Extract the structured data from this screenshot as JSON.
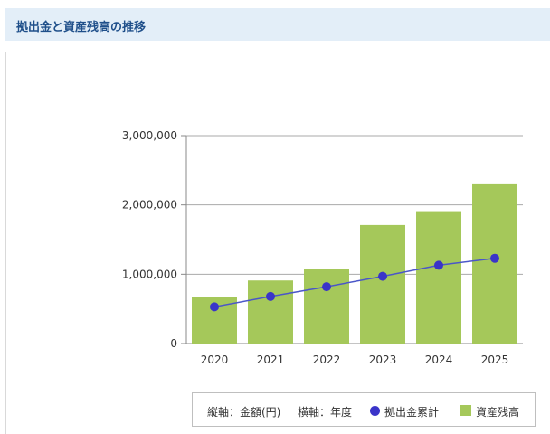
{
  "header": {
    "title": "拠出金と資産残高の推移"
  },
  "legend": {
    "vertical_axis_label": "縦軸：金額(円)",
    "horizontal_axis_label": "横軸：年度",
    "line_series_label": "拠出金累計",
    "bar_series_label": "資産残高"
  },
  "colors": {
    "bar": "#a5c85a",
    "line": "#4a56c8",
    "point": "#3a34c9",
    "axis": "#888888",
    "grid": "#aaaaaa"
  },
  "chart_data": {
    "type": "bar",
    "categories": [
      "2020",
      "2021",
      "2022",
      "2023",
      "2024",
      "2025"
    ],
    "series": [
      {
        "name": "資産残高",
        "type": "bar",
        "values": [
          670000,
          910000,
          1080000,
          1710000,
          1910000,
          2310000
        ]
      },
      {
        "name": "拠出金累計",
        "type": "line",
        "values": [
          530000,
          680000,
          820000,
          970000,
          1130000,
          1230000
        ]
      }
    ],
    "y_ticks": [
      "0",
      "1,000,000",
      "2,000,000",
      "3,000,000"
    ],
    "y_tick_values": [
      0,
      1000000,
      2000000,
      3000000
    ],
    "ylim": [
      0,
      3000000
    ],
    "grid": true,
    "legend_position": "bottom-right"
  }
}
